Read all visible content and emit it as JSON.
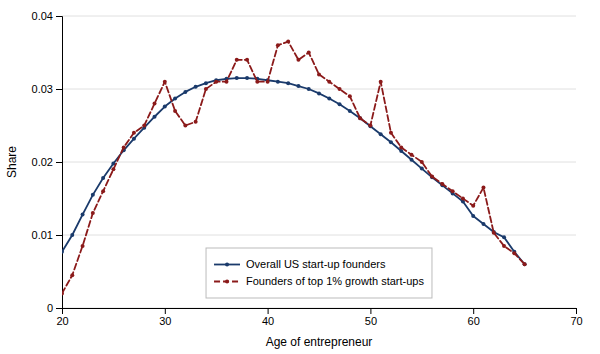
{
  "chart_data": {
    "type": "line",
    "xlabel": "Age of entrepreneur",
    "ylabel": "Share",
    "xlim": [
      20,
      70
    ],
    "ylim": [
      0,
      0.04
    ],
    "xticks": [
      20,
      30,
      40,
      50,
      60,
      70
    ],
    "yticks": [
      0,
      0.01,
      0.02,
      0.03,
      0.04
    ],
    "grid": true,
    "legend": "lower center",
    "x": [
      20,
      21,
      22,
      23,
      24,
      25,
      26,
      27,
      28,
      29,
      30,
      31,
      32,
      33,
      34,
      35,
      36,
      37,
      38,
      39,
      40,
      41,
      42,
      43,
      44,
      45,
      46,
      47,
      48,
      49,
      50,
      51,
      52,
      53,
      54,
      55,
      56,
      57,
      58,
      59,
      60,
      61,
      62,
      63,
      64,
      65
    ],
    "series": [
      {
        "name": "Overall US start-up founders",
        "color": "#1a3a6b",
        "marker": "circle",
        "line_style": "solid",
        "values": [
          0.0077,
          0.01,
          0.0128,
          0.0155,
          0.0178,
          0.0198,
          0.0216,
          0.0232,
          0.0247,
          0.0262,
          0.0276,
          0.0287,
          0.0296,
          0.0303,
          0.0308,
          0.0312,
          0.0314,
          0.0315,
          0.0315,
          0.0314,
          0.0312,
          0.031,
          0.0308,
          0.0304,
          0.03,
          0.0294,
          0.0287,
          0.0279,
          0.027,
          0.026,
          0.0249,
          0.0238,
          0.0227,
          0.0215,
          0.0203,
          0.0191,
          0.0179,
          0.0168,
          0.0157,
          0.0146,
          0.0126,
          0.0115,
          0.0104,
          0.0097,
          0.0077,
          0.006
        ]
      },
      {
        "name": "Founders of top 1% growth start-ups",
        "color": "#8b1a1a",
        "marker": "circle",
        "line_style": "dashed",
        "values": [
          0.002,
          0.0045,
          0.0085,
          0.013,
          0.016,
          0.019,
          0.022,
          0.024,
          0.025,
          0.028,
          0.031,
          0.027,
          0.025,
          0.0255,
          0.03,
          0.031,
          0.031,
          0.034,
          0.034,
          0.031,
          0.031,
          0.036,
          0.0365,
          0.034,
          0.035,
          0.032,
          0.031,
          0.03,
          0.029,
          0.026,
          0.025,
          0.031,
          0.024,
          0.022,
          0.021,
          0.02,
          0.018,
          0.017,
          0.016,
          0.015,
          0.014,
          0.0165,
          0.0103,
          0.0085,
          0.0075,
          0.006
        ]
      }
    ]
  }
}
